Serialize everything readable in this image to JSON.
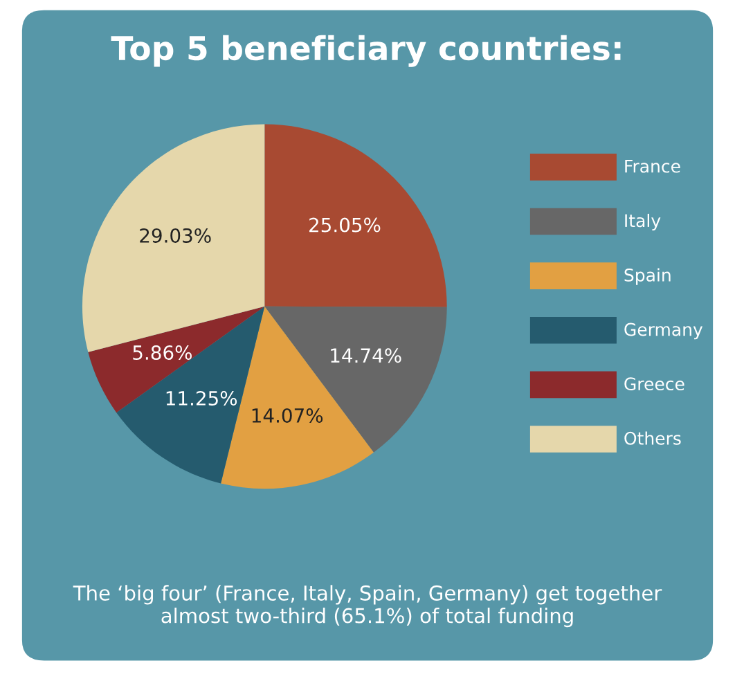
{
  "chart_data": {
    "type": "pie",
    "title": "Top 5 beneficiary countries:",
    "categories": [
      "France",
      "Italy",
      "Spain",
      "Germany",
      "Greece",
      "Others"
    ],
    "values": [
      25.05,
      14.74,
      14.07,
      11.25,
      5.86,
      29.03
    ],
    "value_labels": [
      "25.05%",
      "14.74%",
      "14.07%",
      "11.25%",
      "5.86%",
      "29.03%"
    ],
    "colors": [
      "#a84a32",
      "#676767",
      "#e2a042",
      "#255b6e",
      "#8c2a2c",
      "#e5d7ab"
    ],
    "legend": "right",
    "annotations": [
      "The ‘big four’ (France, Italy, Spain, Germany) get together almost two-third (65.1%) of total funding"
    ]
  }
}
